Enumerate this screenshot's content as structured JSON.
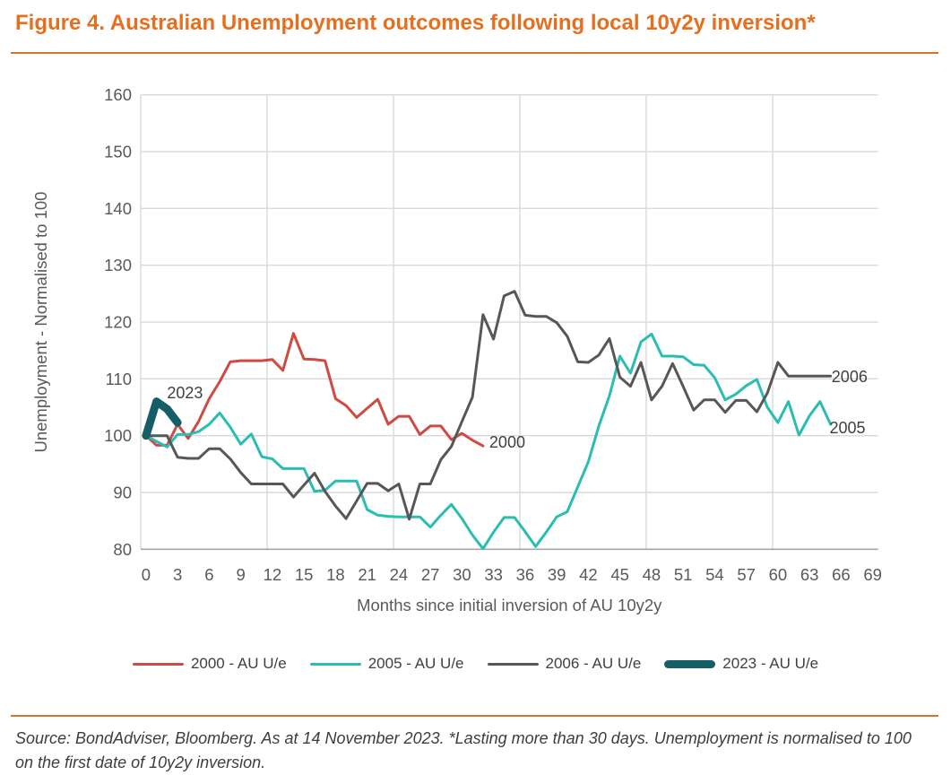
{
  "title": "Figure 4. Australian Unemployment outcomes following local 10y2y inversion*",
  "source_note": "Source: BondAdviser, Bloomberg. As at 14 November 2023. *Lasting more than 30 days. Unemployment is normalised to 100 on the first date of 10y2y inversion.",
  "colors": {
    "title_orange": "#e66f1e",
    "rule_orange": "#d0772f",
    "gridline": "#d9d9d9",
    "axis_line": "#a6a6a6",
    "tick_text": "#595959",
    "annotation_text": "#404040",
    "series_2000": "#d04a41",
    "series_2005": "#2abdb2",
    "series_2006": "#575757",
    "series_2023": "#155e68"
  },
  "legend": {
    "items": [
      {
        "label": "2000 - AU U/e",
        "color": "#d04a41",
        "thick": false
      },
      {
        "label": "2005 - AU U/e",
        "color": "#2abdb2",
        "thick": false
      },
      {
        "label": "2006 - AU U/e",
        "color": "#575757",
        "thick": false
      },
      {
        "label": "2023 - AU U/e",
        "color": "#155e68",
        "thick": true
      }
    ]
  },
  "chart_data": {
    "type": "line",
    "xlabel": "Months since initial inversion of AU 10y2y",
    "ylabel": "Unemployment - Normalised to 100",
    "ylim": [
      80,
      160
    ],
    "yticks": [
      80,
      90,
      100,
      110,
      120,
      130,
      140,
      150,
      160
    ],
    "xticks": [
      0,
      3,
      6,
      9,
      12,
      15,
      18,
      21,
      24,
      27,
      30,
      33,
      36,
      39,
      42,
      45,
      48,
      51,
      54,
      57,
      60,
      63,
      66,
      69
    ],
    "x_slots": 70,
    "x_gridline_step": 12,
    "grid": true,
    "legend_position": "bottom",
    "series": [
      {
        "name": "2000 - AU U/e",
        "color": "#d04a41",
        "width": 3,
        "values": [
          100,
          98.3,
          98.3,
          102,
          99.5,
          102.5,
          106.5,
          109.5,
          113,
          113.2,
          113.2,
          113.2,
          113.4,
          111.5,
          118,
          113.5,
          113.4,
          113.2,
          106.5,
          105.3,
          103.2,
          104.8,
          106.4,
          102,
          103.4,
          103.4,
          100.2,
          101.7,
          101.7,
          99.3,
          100.4,
          99.2,
          98.2
        ]
      },
      {
        "name": "2005 - AU U/e",
        "color": "#2abdb2",
        "width": 3,
        "values": [
          100,
          99,
          98,
          100.2,
          100.2,
          100.7,
          102,
          104,
          101.5,
          98.5,
          100.3,
          96.3,
          95.9,
          94.2,
          94.2,
          94.2,
          90.2,
          90.4,
          92,
          92,
          92,
          87,
          86,
          85.8,
          85.7,
          85.7,
          85.7,
          83.9,
          86,
          87.9,
          85.4,
          82.5,
          80.1,
          83,
          85.6,
          85.6,
          83.1,
          80.5,
          83,
          85.7,
          86.6,
          91,
          95.4,
          101.7,
          107,
          114,
          111,
          116.5,
          117.9,
          114,
          114,
          113.9,
          112.5,
          112.4,
          110.2,
          106.3,
          107.3,
          108.8,
          109.9,
          105,
          102.3,
          106,
          100.1,
          103.5,
          106,
          102
        ]
      },
      {
        "name": "2006 - AU U/e",
        "color": "#575757",
        "width": 3,
        "values": [
          100,
          100,
          100,
          96.2,
          96,
          96,
          97.7,
          97.7,
          95.9,
          93.5,
          91.5,
          91.5,
          91.5,
          91.5,
          89.2,
          91.3,
          93.4,
          90.2,
          87.6,
          85.4,
          88.5,
          91.6,
          91.6,
          90.3,
          91.5,
          85.3,
          91.5,
          91.5,
          95.8,
          98.1,
          102.5,
          106.8,
          121.3,
          117,
          124.6,
          125.4,
          121.2,
          121,
          121,
          119.9,
          117.5,
          113,
          112.9,
          114.2,
          117.1,
          110.3,
          108.7,
          112.9,
          106.3,
          108.7,
          112.7,
          108.7,
          104.5,
          106.3,
          106.3,
          104.1,
          106.2,
          106.2,
          104.2,
          107.5,
          112.9,
          110.5,
          110.5,
          110.5,
          110.5,
          110.5
        ]
      },
      {
        "name": "2023 - AU U/e",
        "color": "#155e68",
        "width": 9,
        "values": [
          100,
          106,
          104.7,
          102.3
        ]
      }
    ],
    "annotations": [
      {
        "text": "2023",
        "month": 2.0,
        "value": 106.6
      },
      {
        "text": "2000",
        "month": 32.6,
        "value": 97.9
      },
      {
        "text": "2006",
        "month": 65.1,
        "value": 109.4
      },
      {
        "text": "2005",
        "month": 64.9,
        "value": 100.4
      }
    ]
  }
}
